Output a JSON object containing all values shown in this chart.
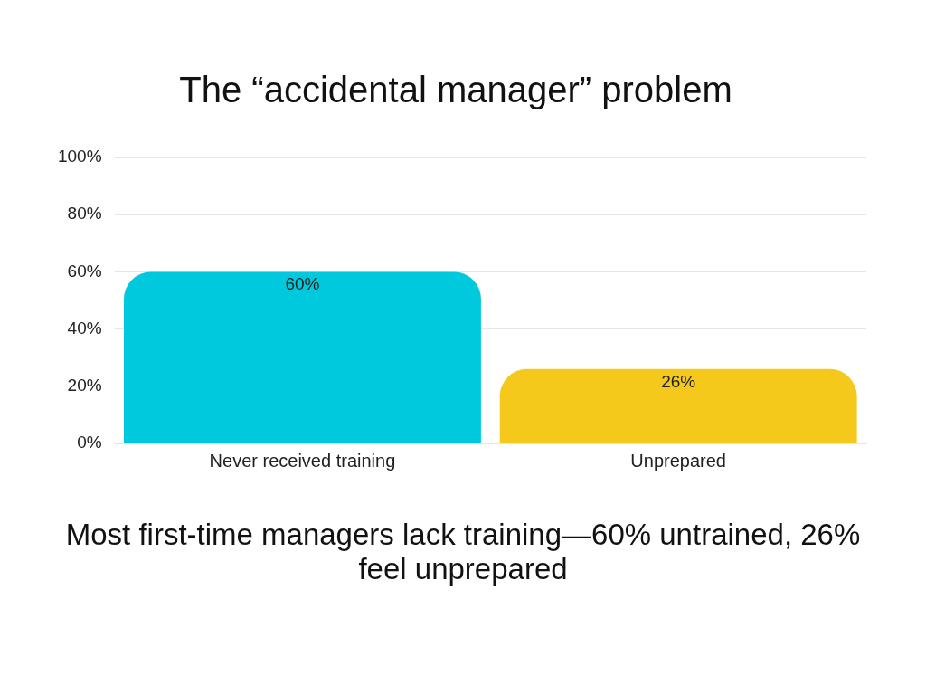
{
  "chart_data": {
    "type": "bar",
    "title": "The “accidental manager” problem",
    "categories": [
      "Never received training",
      "Unprepared"
    ],
    "values": [
      60,
      26
    ],
    "colors": [
      "#00c9dd",
      "#f5c91c"
    ],
    "value_labels": [
      "60%",
      "26%"
    ],
    "ylim": [
      0,
      100
    ],
    "yticks": [
      {
        "value": 0,
        "label": "0%"
      },
      {
        "value": 20,
        "label": "20%"
      },
      {
        "value": 40,
        "label": "40%"
      },
      {
        "value": 60,
        "label": "60%"
      },
      {
        "value": 80,
        "label": "80%"
      },
      {
        "value": 100,
        "label": "100%"
      }
    ],
    "grid": "y",
    "legend": false,
    "annotations": [
      "Most first-time managers lack training—60% untrained, 26% feel unprepared"
    ]
  }
}
